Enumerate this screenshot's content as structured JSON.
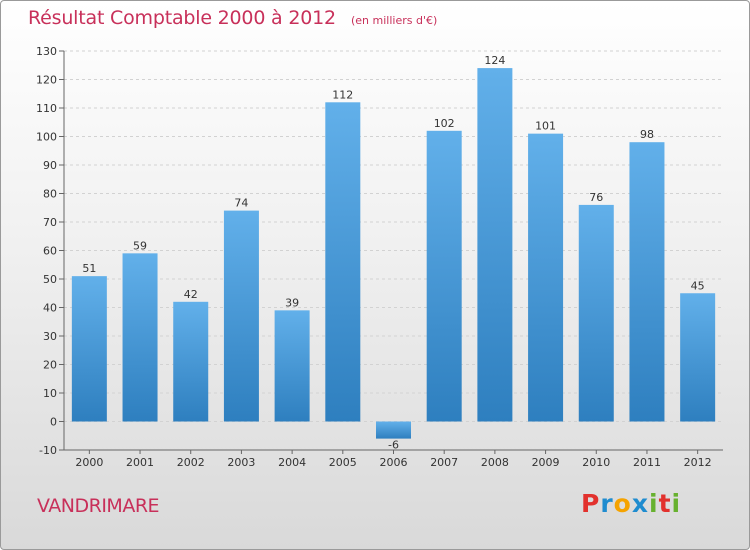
{
  "title": "Résultat Comptable 2000 à 2012",
  "unit_note": "(en milliers d'€)",
  "commune": "VANDRIMARE",
  "logo": {
    "letters": [
      "P",
      "r",
      "o",
      "x",
      "i",
      "t",
      "i"
    ],
    "colors": [
      "#e2312d",
      "#1f8ccf",
      "#f5a300",
      "#1f8ccf",
      "#67b12f",
      "#e2312d",
      "#67b12f"
    ]
  },
  "colors": {
    "title": "#c8305a",
    "bar_light": "#62b0ea",
    "bar_dark": "#2e7fbf"
  },
  "chart_data": {
    "type": "bar",
    "categories": [
      "2000",
      "2001",
      "2002",
      "2003",
      "2004",
      "2005",
      "2006",
      "2007",
      "2008",
      "2009",
      "2010",
      "2011",
      "2012"
    ],
    "values": [
      51,
      59,
      42,
      74,
      39,
      112,
      -6,
      102,
      124,
      101,
      76,
      98,
      45
    ],
    "title": "Résultat Comptable 2000 à 2012",
    "xlabel": "",
    "ylabel": "",
    "ylim": [
      -10,
      130
    ],
    "yticks": [
      -10,
      0,
      10,
      20,
      30,
      40,
      50,
      60,
      70,
      80,
      90,
      100,
      110,
      120,
      130
    ],
    "grid": true,
    "legend": "none"
  }
}
